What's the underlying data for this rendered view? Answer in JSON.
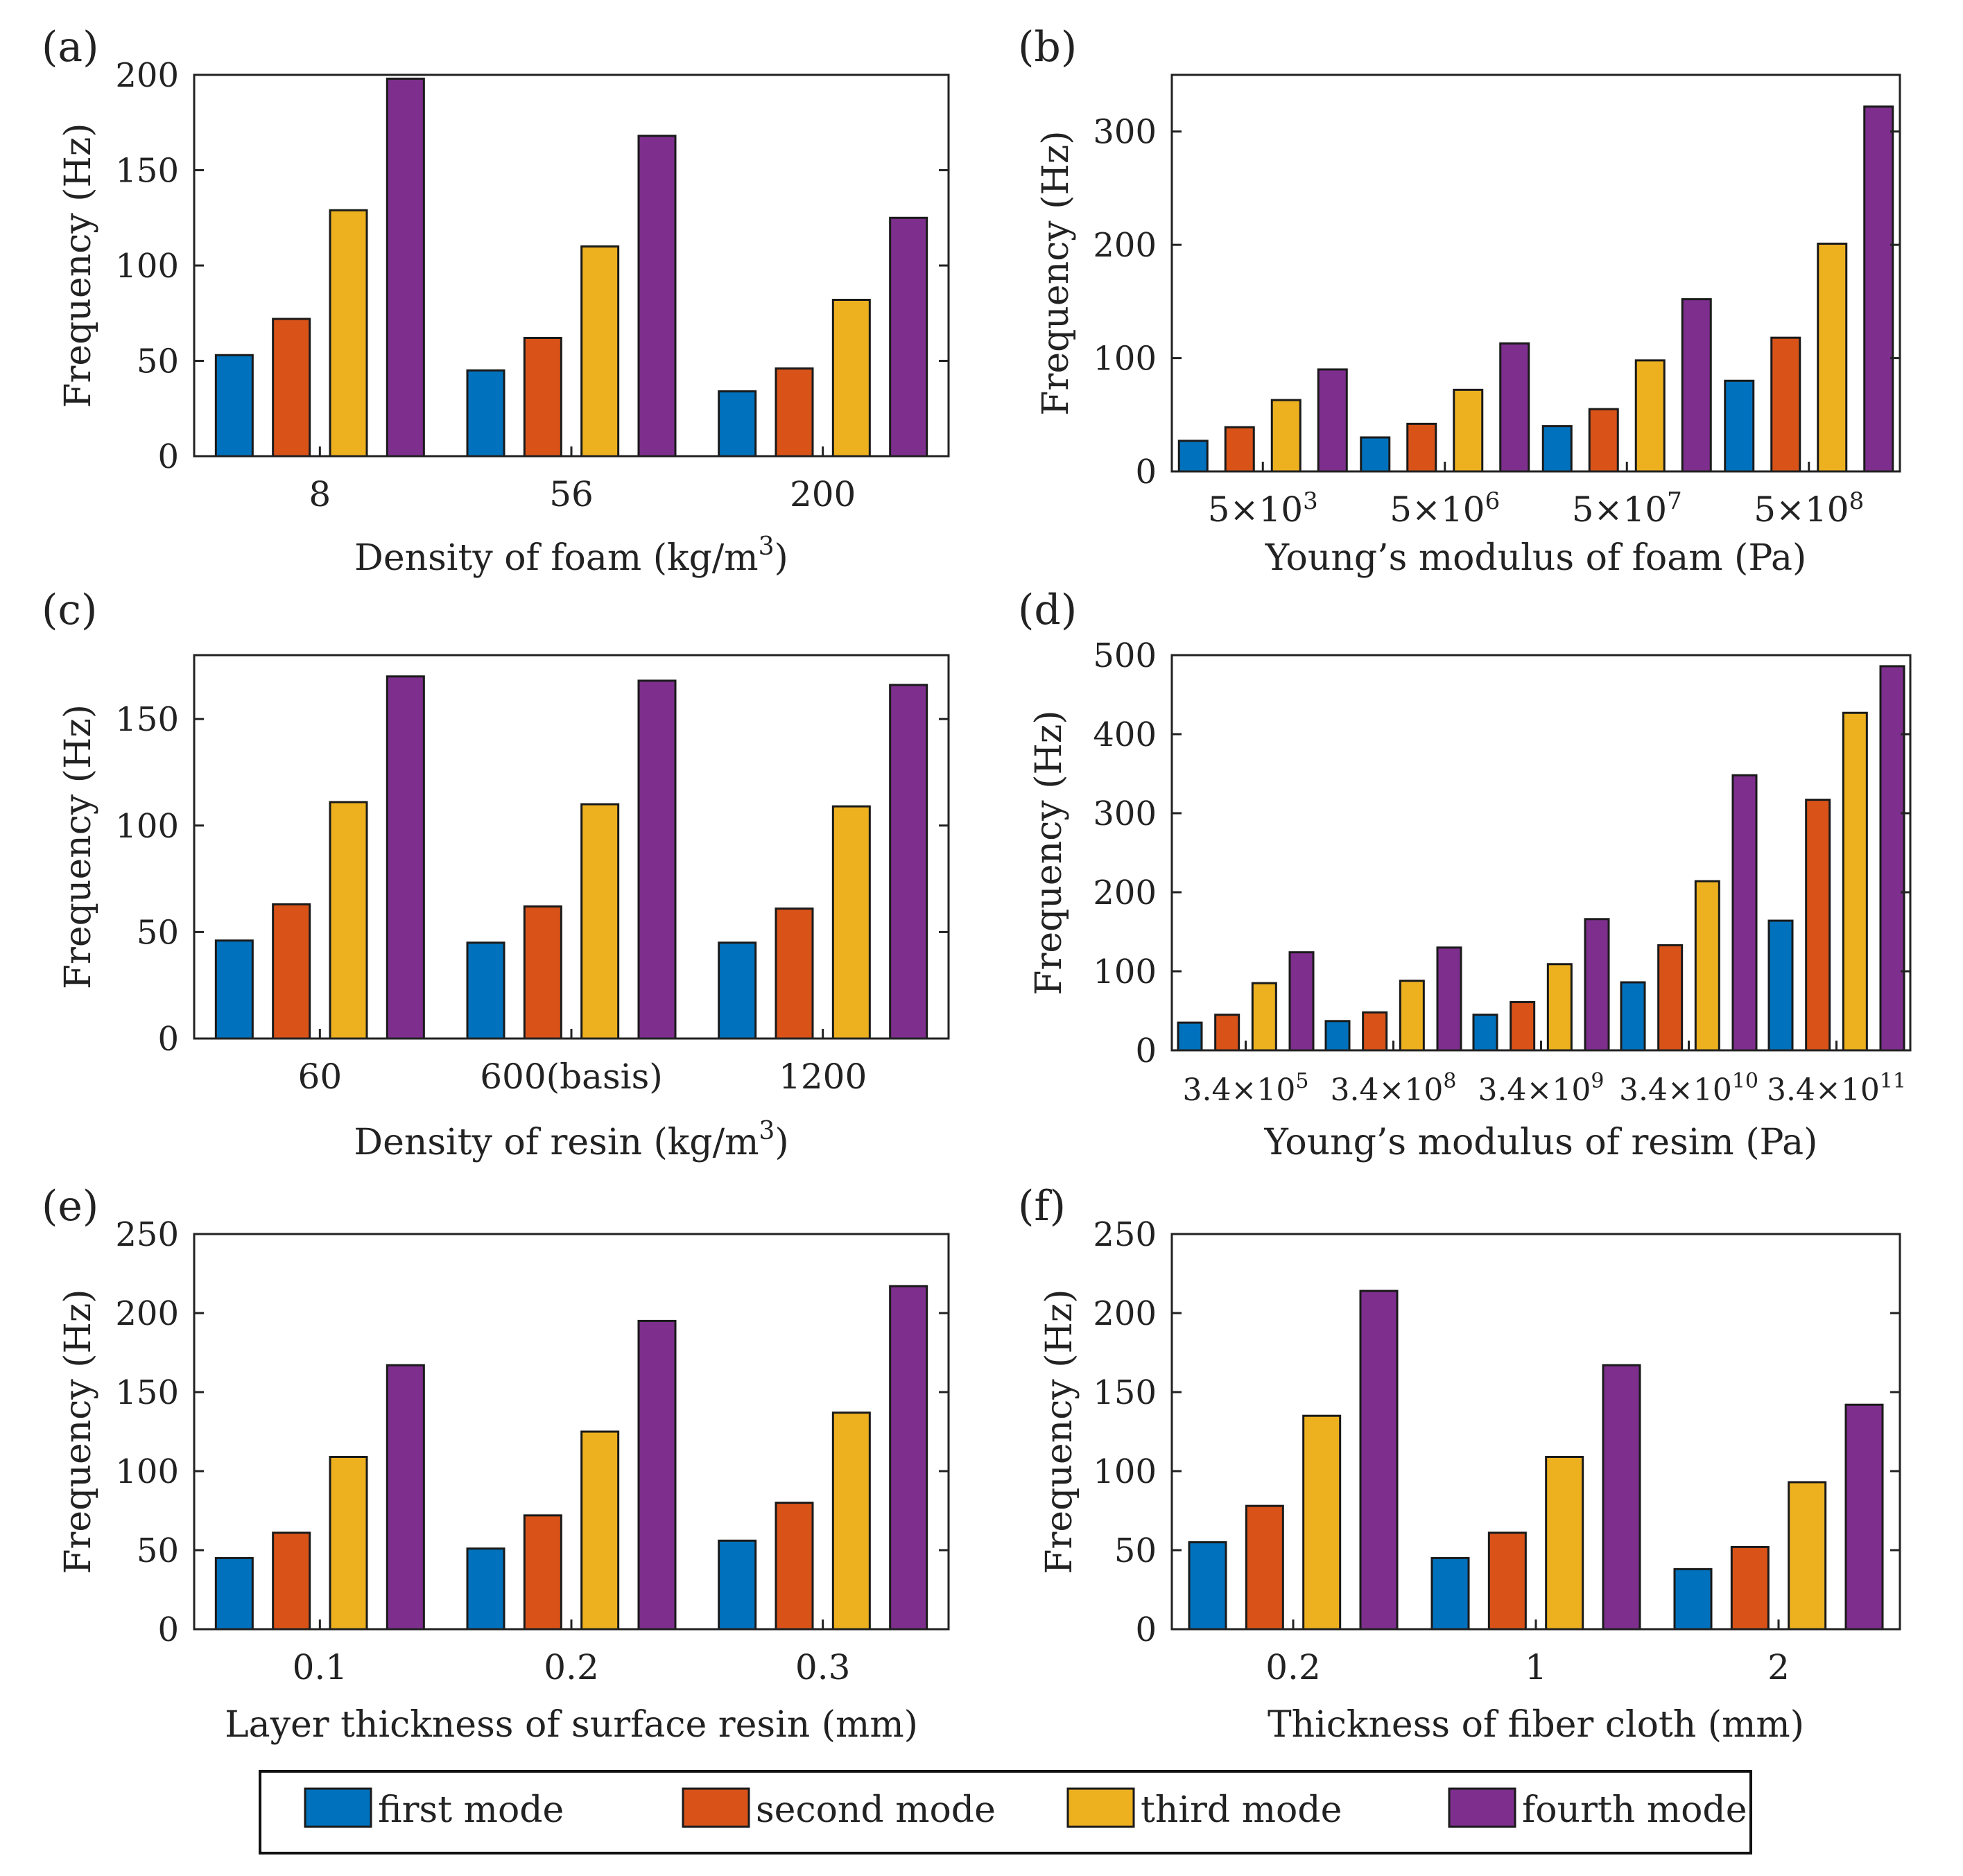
{
  "chart_data": [
    {
      "panel_label": "(a)",
      "type": "bar",
      "categories": [
        "8",
        "56",
        "200"
      ],
      "series": [
        {
          "name": "first mode",
          "values": [
            53,
            45,
            34
          ]
        },
        {
          "name": "second mode",
          "values": [
            72,
            62,
            46
          ]
        },
        {
          "name": "third mode",
          "values": [
            129,
            110,
            82
          ]
        },
        {
          "name": "fourth mode",
          "values": [
            198,
            168,
            125
          ]
        }
      ],
      "ylim": [
        0,
        200
      ],
      "yticks": [
        "0",
        "50",
        "100",
        "150",
        "200"
      ],
      "ylabel": "Frequency (Hz)",
      "xlabel_text": "Density of foam (kg/m",
      "xlabel_sup": "3",
      "xlabel_end": ")"
    },
    {
      "panel_label": "(b)",
      "type": "bar",
      "categories": [
        {
          "base": "5×10",
          "exp": "3"
        },
        {
          "base": "5×10",
          "exp": "6"
        },
        {
          "base": "5×10",
          "exp": "7"
        },
        {
          "base": "5×10",
          "exp": "8"
        }
      ],
      "series": [
        {
          "name": "first mode",
          "values": [
            27,
            30,
            40,
            80
          ]
        },
        {
          "name": "second mode",
          "values": [
            39,
            42,
            55,
            118
          ]
        },
        {
          "name": "third mode",
          "values": [
            63,
            72,
            98,
            201
          ]
        },
        {
          "name": "fourth mode",
          "values": [
            90,
            113,
            152,
            322
          ]
        }
      ],
      "ylim": [
        0,
        350
      ],
      "yticks": [
        "0",
        "100",
        "200",
        "300"
      ],
      "ylabel": "Frequency (Hz)",
      "xlabel_text": "Young’s modulus of foam (Pa)"
    },
    {
      "panel_label": "(c)",
      "type": "bar",
      "categories": [
        "60",
        "600(basis)",
        "1200"
      ],
      "series": [
        {
          "name": "first mode",
          "values": [
            46,
            45,
            45
          ]
        },
        {
          "name": "second mode",
          "values": [
            63,
            62,
            61
          ]
        },
        {
          "name": "third mode",
          "values": [
            111,
            110,
            109
          ]
        },
        {
          "name": "fourth mode",
          "values": [
            170,
            168,
            166
          ]
        }
      ],
      "ylim": [
        0,
        180
      ],
      "yticks": [
        "0",
        "50",
        "100",
        "150"
      ],
      "ylabel": "Frequency (Hz)",
      "xlabel_text": "Density of resin (kg/m",
      "xlabel_sup": "3",
      "xlabel_end": ")"
    },
    {
      "panel_label": "(d)",
      "type": "bar",
      "categories": [
        {
          "base": "3.4×10",
          "exp": "5"
        },
        {
          "base": "3.4×10",
          "exp": "8"
        },
        {
          "base": "3.4×10",
          "exp": "9"
        },
        {
          "base": "3.4×10",
          "exp": "10"
        },
        {
          "base": "3.4×10",
          "exp": "11"
        }
      ],
      "series": [
        {
          "name": "first mode",
          "values": [
            35,
            37,
            45,
            86,
            164
          ]
        },
        {
          "name": "second mode",
          "values": [
            45,
            48,
            61,
            133,
            317
          ]
        },
        {
          "name": "third mode",
          "values": [
            85,
            88,
            109,
            214,
            427
          ]
        },
        {
          "name": "fourth mode",
          "values": [
            124,
            130,
            166,
            348,
            486
          ]
        }
      ],
      "ylim": [
        0,
        500
      ],
      "yticks": [
        "0",
        "100",
        "200",
        "300",
        "400",
        "500"
      ],
      "ylabel": "Frequency (Hz)",
      "xlabel_text": "Young’s modulus of resim (Pa)"
    },
    {
      "panel_label": "(e)",
      "type": "bar",
      "categories": [
        "0.1",
        "0.2",
        "0.3"
      ],
      "series": [
        {
          "name": "first mode",
          "values": [
            45,
            51,
            56
          ]
        },
        {
          "name": "second mode",
          "values": [
            61,
            72,
            80
          ]
        },
        {
          "name": "third mode",
          "values": [
            109,
            125,
            137
          ]
        },
        {
          "name": "fourth mode",
          "values": [
            167,
            195,
            217
          ]
        }
      ],
      "ylim": [
        0,
        250
      ],
      "yticks": [
        "0",
        "50",
        "100",
        "150",
        "200",
        "250"
      ],
      "ylabel": "Frequency (Hz)",
      "xlabel_text": "Layer thickness of surface resin (mm)"
    },
    {
      "panel_label": "(f)",
      "type": "bar",
      "categories": [
        "0.2",
        "1",
        "2"
      ],
      "series": [
        {
          "name": "first mode",
          "values": [
            55,
            45,
            38
          ]
        },
        {
          "name": "second mode",
          "values": [
            78,
            61,
            52
          ]
        },
        {
          "name": "third mode",
          "values": [
            135,
            109,
            93
          ]
        },
        {
          "name": "fourth mode",
          "values": [
            214,
            167,
            142
          ]
        }
      ],
      "ylim": [
        0,
        250
      ],
      "yticks": [
        "0",
        "50",
        "100",
        "150",
        "200",
        "250"
      ],
      "ylabel": "Frequency (Hz)",
      "xlabel_text": "Thickness of fiber cloth (mm)"
    }
  ],
  "legend": {
    "position": "bottom",
    "items": [
      {
        "name": "first mode",
        "color": "#0072BD"
      },
      {
        "name": "second mode",
        "color": "#D95319"
      },
      {
        "name": "third mode",
        "color": "#EDB120"
      },
      {
        "name": "fourth mode",
        "color": "#7E2F8E"
      }
    ]
  }
}
